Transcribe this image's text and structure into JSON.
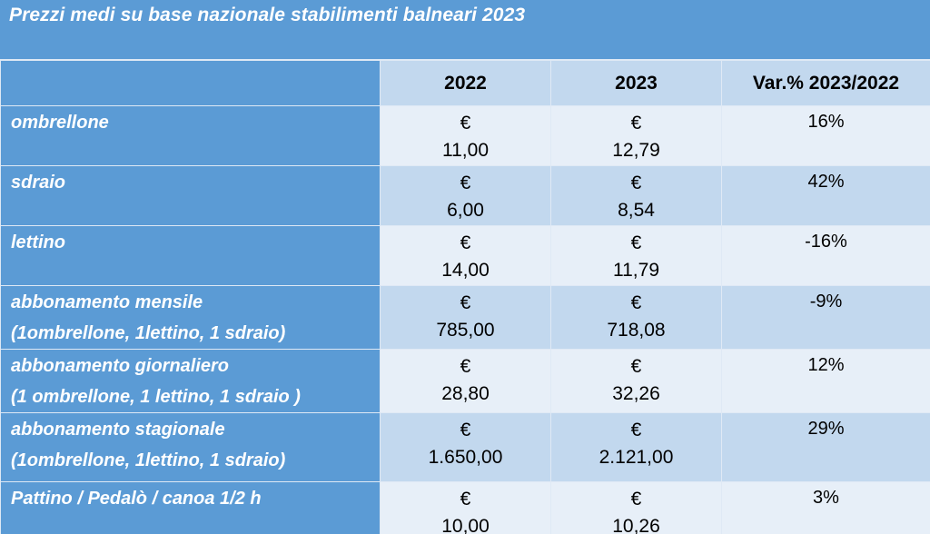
{
  "title": "Prezzi medi su base nazionale stabilimenti balneari 2023",
  "columns": [
    "",
    "2022",
    "2023",
    "Var.% 2023/2022"
  ],
  "currency": "€",
  "rows": [
    {
      "label": [
        "ombrellone"
      ],
      "v2022": "11,00",
      "v2023": "12,79",
      "var": "16%"
    },
    {
      "label": [
        "sdraio"
      ],
      "v2022": "6,00",
      "v2023": "8,54",
      "var": "42%"
    },
    {
      "label": [
        "lettino"
      ],
      "v2022": "14,00",
      "v2023": "11,79",
      "var": "-16%"
    },
    {
      "label": [
        "abbonamento mensile",
        "(1ombrellone, 1lettino, 1 sdraio)"
      ],
      "v2022": "785,00",
      "v2023": "718,08",
      "var": "-9%"
    },
    {
      "label": [
        "abbonamento giornaliero",
        "(1 ombrellone, 1 lettino, 1 sdraio )"
      ],
      "v2022": "28,80",
      "v2023": "32,26",
      "var": "12%"
    },
    {
      "label": [
        "abbonamento stagionale",
        "(1ombrellone, 1lettino, 1 sdraio)"
      ],
      "v2022": "1.650,00",
      "v2023": "2.121,00",
      "var": "29%"
    },
    {
      "label": [
        "Pattino / Pedalò  / canoa 1/2 h"
      ],
      "v2022": "10,00",
      "v2023": "10,26",
      "var": "3%"
    }
  ],
  "colors": {
    "header_blue": "#5b9bd5",
    "light_row": "#e7eff8",
    "mid_row": "#c2d8ee"
  }
}
